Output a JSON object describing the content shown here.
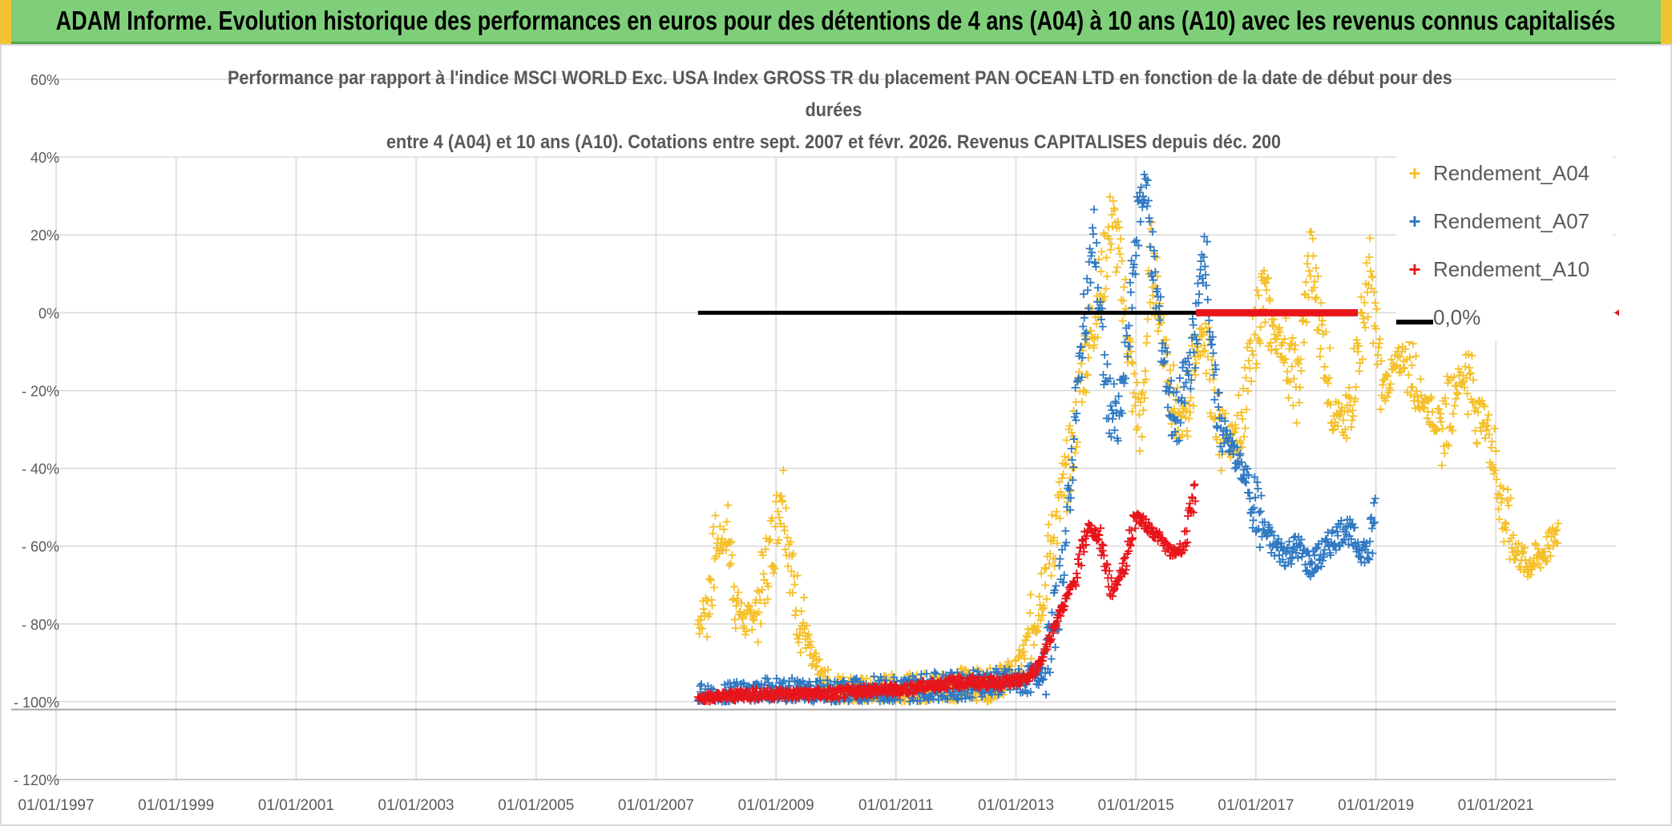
{
  "header": {
    "title": "ADAM Informe. Evolution historique des performances en euros pour des détentions de 4 ans (A04) à 10 ans (A10) avec les revenus connus capitalisés"
  },
  "chart_data": {
    "type": "scatter",
    "title_lines": [
      "Performance par rapport à l'indice MSCI WORLD Exc. USA Index GROSS TR  du placement PAN OCEAN LTD en fonction de la date de début pour des",
      "durées",
      "entre 4 (A04) et 10 ans (A10). Cotations entre sept. 2007 et févr. 2026. Revenus CAPITALISES depuis déc. 200"
    ],
    "xlabel": "",
    "ylabel": "",
    "xlim": [
      1997.0,
      2023.0
    ],
    "ylim": [
      -120,
      60
    ],
    "x_ticks": [
      1997,
      1999,
      2001,
      2003,
      2005,
      2007,
      2009,
      2011,
      2013,
      2015,
      2017,
      2019,
      2021
    ],
    "x_tick_labels": [
      "01/01/1997",
      "01/01/1999",
      "01/01/2001",
      "01/01/2003",
      "01/01/2005",
      "01/01/2007",
      "01/01/2009",
      "01/01/2011",
      "01/01/2013",
      "01/01/2015",
      "01/01/2017",
      "01/01/2019",
      "01/01/2021"
    ],
    "y_ticks": [
      60,
      40,
      20,
      0,
      -20,
      -40,
      -60,
      -80,
      -100,
      -120
    ],
    "y_tick_labels": [
      "60%",
      "40%",
      "20%",
      "0%",
      "- 20%",
      "- 40%",
      "- 60%",
      "- 80%",
      "- 100%",
      "- 120%"
    ],
    "grid": true,
    "legend_position": "top-right",
    "series": [
      {
        "name": "Rendement_A04",
        "color": "#f5c02a",
        "marker": "+",
        "x": [
          2007.7,
          2007.85,
          2008.0,
          2008.2,
          2008.35,
          2008.5,
          2008.7,
          2008.85,
          2009.0,
          2009.1,
          2009.3,
          2009.5,
          2009.6,
          2009.8,
          2009.95,
          2010.2,
          2010.5,
          2010.8,
          2011.0,
          2011.3,
          2011.6,
          2011.9,
          2012.2,
          2012.5,
          2012.8,
          2013.0,
          2013.2,
          2013.4,
          2013.6,
          2013.8,
          2013.95,
          2014.1,
          2014.25,
          2014.45,
          2014.6,
          2014.8,
          2014.95,
          2015.1,
          2015.25,
          2015.4,
          2015.55,
          2015.7,
          2015.85,
          2016.0,
          2016.15,
          2016.3,
          2016.5,
          2016.7,
          2016.9,
          2017.1,
          2017.3,
          2017.5,
          2017.7,
          2017.9,
          2018.1,
          2018.3,
          2018.5,
          2018.7,
          2018.9,
          2019.1,
          2019.3,
          2019.5,
          2019.7,
          2019.9,
          2020.1,
          2020.3,
          2020.5,
          2020.7,
          2020.9,
          2021.1,
          2021.3,
          2021.5,
          2021.7,
          2021.9,
          2022.05
        ],
        "y": [
          -80,
          -75,
          -60,
          -57,
          -75,
          -80,
          -75,
          -65,
          -55,
          -43,
          -72,
          -83,
          -90,
          -95,
          -97,
          -97,
          -98,
          -97,
          -97,
          -97,
          -96,
          -96,
          -95,
          -96,
          -94,
          -93,
          -85,
          -72,
          -60,
          -45,
          -35,
          -15,
          -5,
          10,
          25,
          5,
          -20,
          -30,
          15,
          0,
          -15,
          -30,
          -25,
          -10,
          -5,
          -25,
          -35,
          -30,
          -15,
          5,
          -5,
          -10,
          -20,
          15,
          -5,
          -25,
          -30,
          -10,
          10,
          -20,
          -15,
          -10,
          -20,
          -25,
          -30,
          -20,
          -15,
          -25,
          -30,
          -50,
          -60,
          -65,
          -63,
          -60,
          -55
        ]
      },
      {
        "name": "Rendement_A07",
        "color": "#2f79c3",
        "marker": "+",
        "x": [
          2007.7,
          2008.0,
          2008.5,
          2009.0,
          2009.5,
          2010.0,
          2010.5,
          2011.0,
          2011.5,
          2012.0,
          2012.5,
          2013.0,
          2013.3,
          2013.5,
          2013.7,
          2013.85,
          2014.0,
          2014.15,
          2014.3,
          2014.5,
          2014.7,
          2014.85,
          2015.0,
          2015.15,
          2015.3,
          2015.5,
          2015.65,
          2015.8,
          2016.0,
          2016.15,
          2016.3,
          2016.45,
          2016.6,
          2016.75,
          2016.9,
          2017.1,
          2017.3,
          2017.5,
          2017.7,
          2017.9,
          2018.1,
          2018.3,
          2018.5,
          2018.7,
          2018.9,
          2019.0
        ],
        "y": [
          -99,
          -99,
          -98,
          -97,
          -98,
          -98,
          -97,
          -97,
          -96,
          -96,
          -95,
          -95,
          -94,
          -90,
          -75,
          -55,
          -25,
          0,
          20,
          -20,
          -30,
          -10,
          20,
          35,
          10,
          -15,
          -30,
          -20,
          -5,
          20,
          -20,
          -30,
          -35,
          -40,
          -45,
          -55,
          -60,
          -62,
          -60,
          -65,
          -62,
          -58,
          -55,
          -60,
          -62,
          -50
        ]
      },
      {
        "name": "Rendement_A10",
        "color": "#e8151b",
        "marker": "+",
        "x": [
          2007.7,
          2008.0,
          2008.5,
          2009.0,
          2009.5,
          2010.0,
          2010.5,
          2011.0,
          2011.5,
          2012.0,
          2012.5,
          2013.0,
          2013.2,
          2013.4,
          2013.6,
          2013.8,
          2014.0,
          2014.2,
          2014.4,
          2014.6,
          2014.8,
          2015.0,
          2015.2,
          2015.4,
          2015.6,
          2015.8,
          2016.0
        ],
        "y": [
          -99,
          -99,
          -98,
          -98,
          -98,
          -98,
          -97,
          -97,
          -96,
          -95,
          -95,
          -95,
          -94,
          -90,
          -82,
          -75,
          -68,
          -55,
          -58,
          -72,
          -65,
          -52,
          -55,
          -58,
          -62,
          -60,
          -45
        ]
      },
      {
        "name": "0,0%",
        "color": "#000000",
        "marker": "line",
        "x": [
          2007.7,
          2016.0
        ],
        "y": [
          0,
          0
        ]
      }
    ],
    "red_zero_band": {
      "x": [
        2016.0,
        2018.7
      ],
      "y": 0
    }
  }
}
